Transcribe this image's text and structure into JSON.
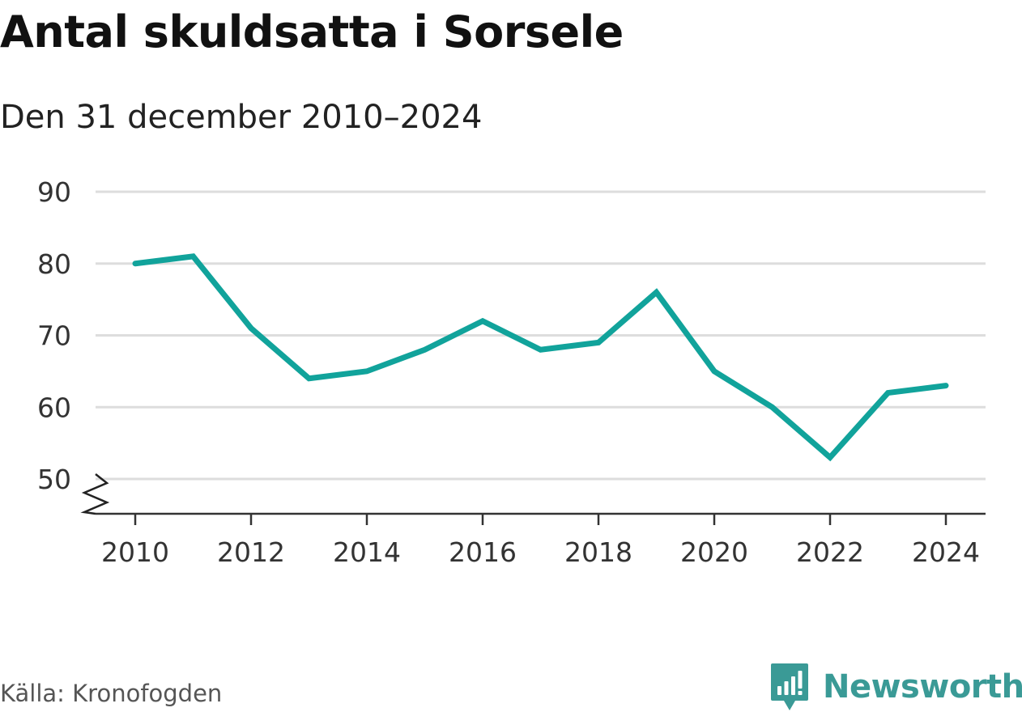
{
  "header": {
    "title": "Antal skuldsatta i Sorsele",
    "subtitle": "Den 31 december 2010–2024"
  },
  "footer": {
    "source": "Källa: Kronofogden",
    "brand": "Newsworthy"
  },
  "colors": {
    "line": "#11a39b",
    "grid": "#dddddd",
    "axis": "#333333",
    "brand": "#3a9a96"
  },
  "chart_data": {
    "type": "line",
    "title": "Antal skuldsatta i Sorsele",
    "subtitle": "Den 31 december 2010–2024",
    "xlabel": "",
    "ylabel": "",
    "x": [
      2010,
      2011,
      2012,
      2013,
      2014,
      2015,
      2016,
      2017,
      2018,
      2019,
      2020,
      2021,
      2022,
      2023,
      2024
    ],
    "series": [
      {
        "values": [
          80,
          81,
          71,
          64,
          65,
          68,
          72,
          68,
          69,
          76,
          65,
          60,
          53,
          62,
          63
        ]
      }
    ],
    "xticks": [
      2010,
      2012,
      2014,
      2016,
      2018,
      2020,
      2022,
      2024
    ],
    "yticks": [
      50,
      60,
      70,
      80,
      90
    ],
    "ylim": [
      50,
      90
    ],
    "y_axis_break": true,
    "grid": "horizontal",
    "legend": "none"
  }
}
